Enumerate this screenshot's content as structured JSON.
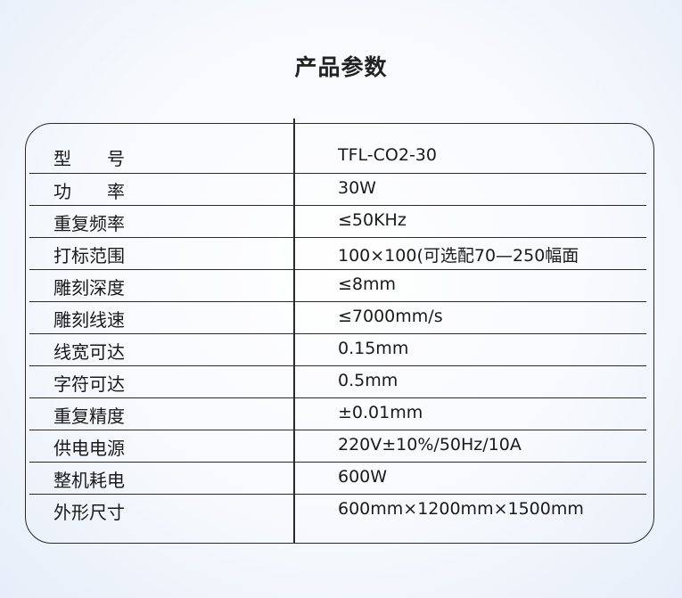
{
  "title": "产品参数",
  "rows": [
    {
      "label": "型　　号",
      "value": "TFL-CO2-30"
    },
    {
      "label": "功　　率",
      "value": "30W"
    },
    {
      "label": "重复频率",
      "value": "≤50KHz"
    },
    {
      "label": "打标范围",
      "value": "100×100(可选配70—250幅面"
    },
    {
      "label": "雕刻深度",
      "value": "≤8mm"
    },
    {
      "label": "雕刻线速",
      "value": "≤7000mm/s"
    },
    {
      "label": "线宽可达",
      "value": "0.15mm"
    },
    {
      "label": "字符可达",
      "value": "0.5mm"
    },
    {
      "label": "重复精度",
      "value": "±0.01mm"
    },
    {
      "label": "供电电源",
      "value": "220V±10%/50Hz/10A"
    },
    {
      "label": "整机耗电",
      "value": "600W"
    },
    {
      "label": "外形尺寸",
      "value": "600mm×1200mm×1500mm"
    }
  ]
}
